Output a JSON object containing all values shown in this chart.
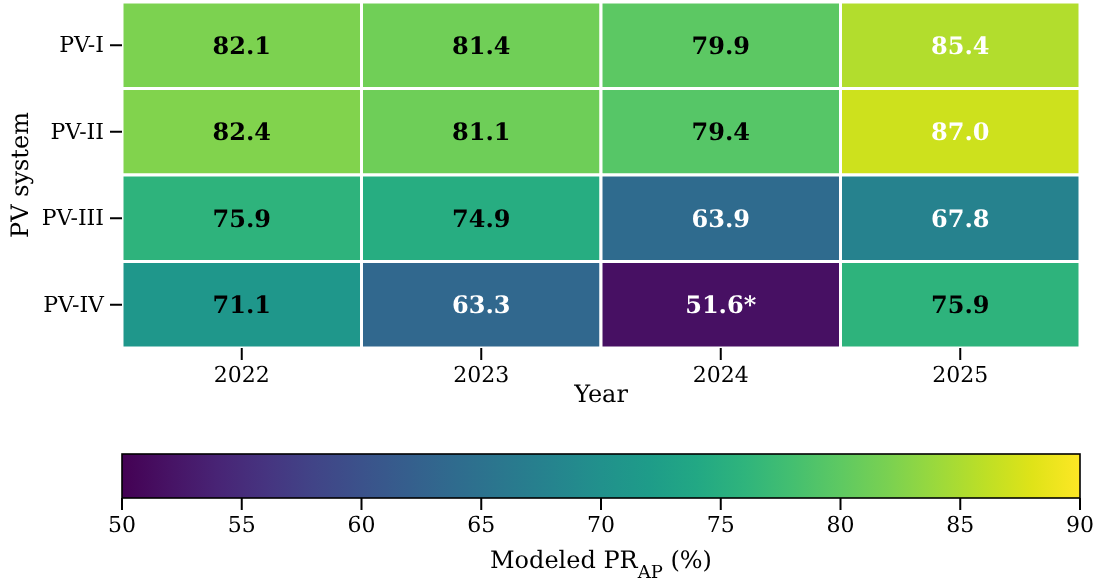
{
  "chart_data": {
    "type": "heatmap",
    "xlabel": "Year",
    "ylabel": "PV system",
    "clabel": "Modeled PR$_{AP}$ (%)",
    "categories": [
      "2022",
      "2023",
      "2024",
      "2025"
    ],
    "y_categories": [
      "PV-I",
      "PV-II",
      "PV-III",
      "PV-IV"
    ],
    "cells": [
      [
        82.1,
        81.4,
        79.9,
        85.4
      ],
      [
        82.4,
        81.1,
        79.4,
        87.0
      ],
      [
        75.9,
        74.9,
        63.9,
        67.8
      ],
      [
        71.1,
        63.3,
        51.6,
        75.9
      ]
    ],
    "cell_labels": [
      [
        "82.1",
        "81.4",
        "79.9",
        "85.4"
      ],
      [
        "82.4",
        "81.1",
        "79.4",
        "87.0"
      ],
      [
        "75.9",
        "74.9",
        "63.9",
        "67.8"
      ],
      [
        "71.1",
        "63.3",
        "51.6*",
        "75.9"
      ]
    ],
    "clim": [
      50,
      90
    ],
    "cticks": [
      50,
      55,
      60,
      65,
      70,
      75,
      80,
      85,
      90
    ]
  }
}
